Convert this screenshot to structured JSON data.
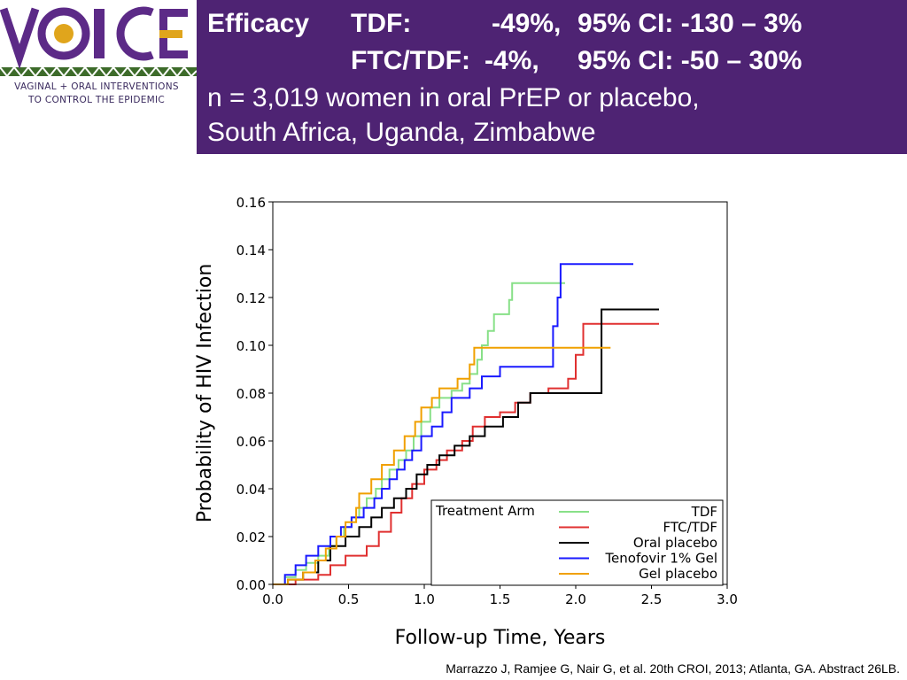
{
  "logo": {
    "wordmark": "VOICE",
    "tagline_1": "VAGINAL + ORAL INTERVENTIONS",
    "tagline_2": "TO CONTROL THE EPIDEMIC",
    "colors": {
      "purple": "#5c2a87",
      "gold": "#e0a51c",
      "green": "#3d6b2a"
    }
  },
  "header": {
    "label": "Efficacy",
    "rows": [
      {
        "arm": "TDF:",
        "effect": "-49%,",
        "ci": "95% CI: -130 – 3%"
      },
      {
        "arm": "FTC/TDF:",
        "effect": "-4%,",
        "ci": "95% CI: -50 – 30%"
      }
    ],
    "line3": "n = 3,019 women in oral PrEP or placebo,",
    "line4": "South Africa, Uganda, Zimbabwe",
    "background": "#4e2373"
  },
  "chart_data": {
    "type": "line",
    "xlabel": "Follow-up Time, Years",
    "ylabel": "Probability of HIV Infection",
    "xlim": [
      0,
      3.0
    ],
    "ylim": [
      0,
      0.16
    ],
    "xticks": [
      "0.0",
      "0.5",
      "1.0",
      "1.5",
      "2.0",
      "2.5",
      "3.0"
    ],
    "yticks": [
      "0.00",
      "0.02",
      "0.04",
      "0.06",
      "0.08",
      "0.10",
      "0.12",
      "0.14",
      "0.16"
    ],
    "legend_title": "Treatment Arm",
    "legend_position": "bottom-right",
    "series": [
      {
        "name": "TDF",
        "color": "#88e088",
        "points": [
          [
            0,
            0
          ],
          [
            0.08,
            0.003
          ],
          [
            0.15,
            0.006
          ],
          [
            0.22,
            0.009
          ],
          [
            0.3,
            0.012
          ],
          [
            0.37,
            0.016
          ],
          [
            0.42,
            0.02
          ],
          [
            0.47,
            0.024
          ],
          [
            0.52,
            0.028
          ],
          [
            0.57,
            0.032
          ],
          [
            0.62,
            0.036
          ],
          [
            0.68,
            0.04
          ],
          [
            0.72,
            0.044
          ],
          [
            0.77,
            0.048
          ],
          [
            0.83,
            0.052
          ],
          [
            0.88,
            0.056
          ],
          [
            0.93,
            0.062
          ],
          [
            0.98,
            0.068
          ],
          [
            1.04,
            0.074
          ],
          [
            1.1,
            0.078
          ],
          [
            1.18,
            0.081
          ],
          [
            1.25,
            0.084
          ],
          [
            1.3,
            0.088
          ],
          [
            1.35,
            0.094
          ],
          [
            1.38,
            0.1
          ],
          [
            1.42,
            0.106
          ],
          [
            1.46,
            0.113
          ],
          [
            1.56,
            0.119
          ],
          [
            1.58,
            0.126
          ],
          [
            1.93,
            0.126
          ]
        ]
      },
      {
        "name": "FTC/TDF",
        "color": "#e03030",
        "points": [
          [
            0,
            0
          ],
          [
            0.15,
            0.002
          ],
          [
            0.3,
            0.004
          ],
          [
            0.38,
            0.008
          ],
          [
            0.48,
            0.012
          ],
          [
            0.62,
            0.016
          ],
          [
            0.7,
            0.022
          ],
          [
            0.78,
            0.03
          ],
          [
            0.85,
            0.036
          ],
          [
            0.92,
            0.042
          ],
          [
            1.0,
            0.048
          ],
          [
            1.08,
            0.052
          ],
          [
            1.15,
            0.056
          ],
          [
            1.25,
            0.06
          ],
          [
            1.32,
            0.066
          ],
          [
            1.4,
            0.07
          ],
          [
            1.5,
            0.072
          ],
          [
            1.6,
            0.076
          ],
          [
            1.7,
            0.08
          ],
          [
            1.82,
            0.082
          ],
          [
            1.95,
            0.086
          ],
          [
            2.0,
            0.096
          ],
          [
            2.05,
            0.109
          ],
          [
            2.55,
            0.109
          ]
        ]
      },
      {
        "name": "Oral placebo",
        "color": "#000000",
        "points": [
          [
            0,
            0
          ],
          [
            0.1,
            0.002
          ],
          [
            0.2,
            0.005
          ],
          [
            0.3,
            0.01
          ],
          [
            0.38,
            0.016
          ],
          [
            0.48,
            0.02
          ],
          [
            0.57,
            0.024
          ],
          [
            0.65,
            0.028
          ],
          [
            0.72,
            0.032
          ],
          [
            0.8,
            0.036
          ],
          [
            0.88,
            0.04
          ],
          [
            0.95,
            0.046
          ],
          [
            1.02,
            0.05
          ],
          [
            1.1,
            0.054
          ],
          [
            1.2,
            0.058
          ],
          [
            1.3,
            0.062
          ],
          [
            1.4,
            0.066
          ],
          [
            1.52,
            0.07
          ],
          [
            1.62,
            0.076
          ],
          [
            1.7,
            0.08
          ],
          [
            2.15,
            0.08
          ],
          [
            2.17,
            0.115
          ],
          [
            2.55,
            0.115
          ]
        ]
      },
      {
        "name": "Tenofovir 1% Gel",
        "color": "#1a1aff",
        "points": [
          [
            0,
            0
          ],
          [
            0.08,
            0.004
          ],
          [
            0.15,
            0.008
          ],
          [
            0.22,
            0.012
          ],
          [
            0.3,
            0.016
          ],
          [
            0.38,
            0.02
          ],
          [
            0.45,
            0.024
          ],
          [
            0.52,
            0.028
          ],
          [
            0.6,
            0.032
          ],
          [
            0.67,
            0.036
          ],
          [
            0.72,
            0.04
          ],
          [
            0.77,
            0.044
          ],
          [
            0.82,
            0.048
          ],
          [
            0.87,
            0.052
          ],
          [
            0.92,
            0.056
          ],
          [
            0.98,
            0.062
          ],
          [
            1.05,
            0.066
          ],
          [
            1.12,
            0.072
          ],
          [
            1.18,
            0.078
          ],
          [
            1.3,
            0.082
          ],
          [
            1.38,
            0.087
          ],
          [
            1.5,
            0.091
          ],
          [
            1.82,
            0.091
          ],
          [
            1.85,
            0.108
          ],
          [
            1.88,
            0.12
          ],
          [
            1.9,
            0.134
          ],
          [
            2.38,
            0.134
          ]
        ]
      },
      {
        "name": "Gel placebo",
        "color": "#f0a000",
        "points": [
          [
            0,
            0
          ],
          [
            0.1,
            0.002
          ],
          [
            0.2,
            0.005
          ],
          [
            0.28,
            0.01
          ],
          [
            0.35,
            0.015
          ],
          [
            0.42,
            0.02
          ],
          [
            0.48,
            0.026
          ],
          [
            0.55,
            0.032
          ],
          [
            0.57,
            0.038
          ],
          [
            0.65,
            0.044
          ],
          [
            0.72,
            0.05
          ],
          [
            0.8,
            0.056
          ],
          [
            0.87,
            0.062
          ],
          [
            0.94,
            0.068
          ],
          [
            0.98,
            0.074
          ],
          [
            1.05,
            0.078
          ],
          [
            1.1,
            0.082
          ],
          [
            1.22,
            0.086
          ],
          [
            1.3,
            0.092
          ],
          [
            1.33,
            0.099
          ],
          [
            2.23,
            0.099
          ]
        ]
      }
    ]
  },
  "citation": "Marrazzo J, Ramjee G, Nair G, et al. 20th CROI, 2013; Atlanta, GA. Abstract 26LB."
}
